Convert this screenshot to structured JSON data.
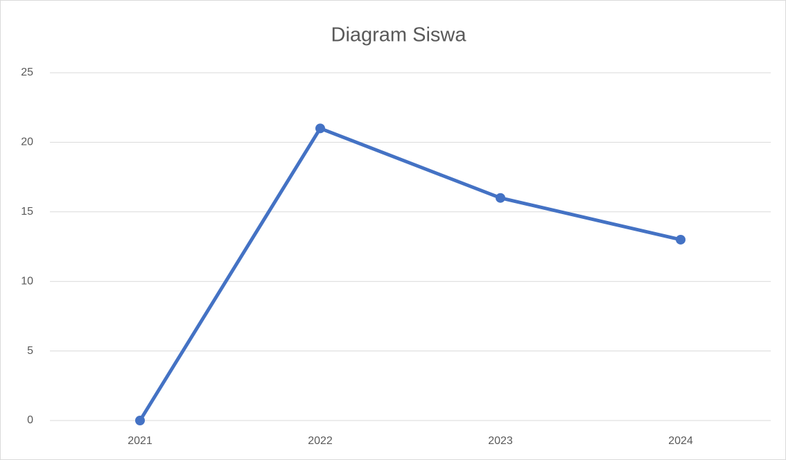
{
  "chart_data": {
    "type": "line",
    "title": "Diagram Siswa",
    "categories": [
      "2021",
      "2022",
      "2023",
      "2024"
    ],
    "values": [
      0,
      21,
      16,
      13
    ],
    "color": "#4472c4",
    "ylim": [
      0,
      25
    ],
    "yticks": [
      0,
      5,
      10,
      15,
      20,
      25
    ],
    "grid": true
  }
}
